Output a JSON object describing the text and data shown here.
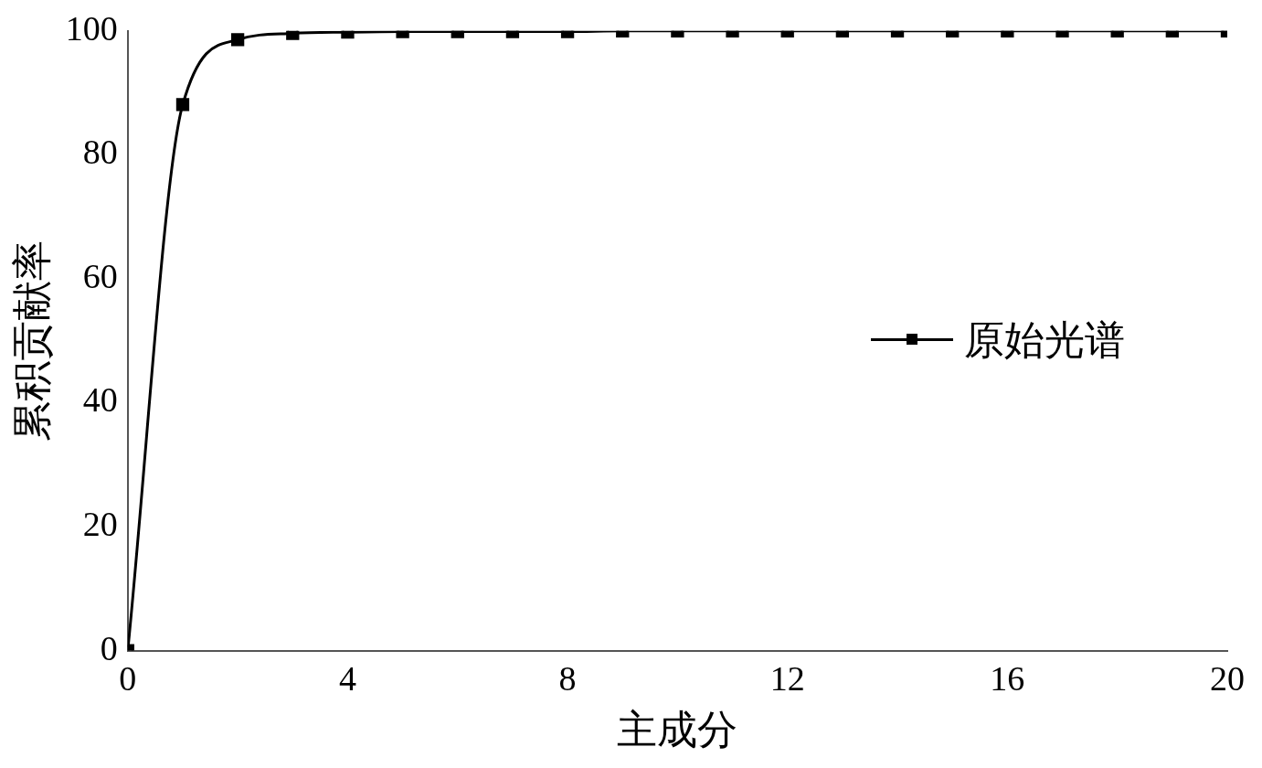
{
  "chart_data": {
    "type": "line",
    "xlabel": "主成分",
    "ylabel": "累积贡献率",
    "x": [
      0,
      1,
      2,
      3,
      4,
      5,
      6,
      7,
      8,
      9,
      10,
      11,
      12,
      13,
      14,
      15,
      16,
      17,
      18,
      19,
      20
    ],
    "series": [
      {
        "name": "原始光谱",
        "color": "#000000",
        "values": [
          0,
          88.1,
          98.6,
          99.6,
          99.8,
          99.9,
          99.9,
          99.9,
          99.9,
          100,
          100,
          100,
          100,
          100,
          100,
          100,
          100,
          100,
          100,
          100,
          100
        ]
      }
    ],
    "xlim": [
      0,
      20
    ],
    "xticks": [
      0,
      4,
      8,
      12,
      16,
      20
    ],
    "ylim": [
      0,
      100
    ],
    "yticks": [
      0,
      20,
      40,
      60,
      80,
      100
    ],
    "grid": false,
    "legend": "right",
    "marker": "square",
    "line_style": "solid"
  }
}
